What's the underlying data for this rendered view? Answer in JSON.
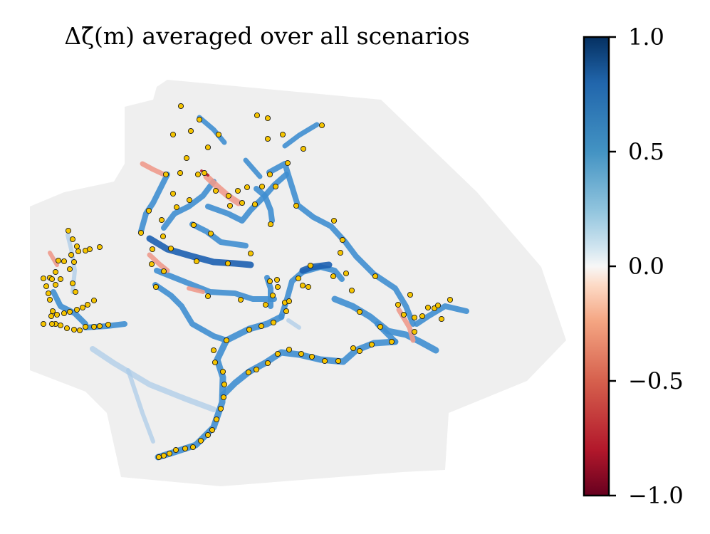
{
  "chart_data": {
    "type": "heatmap",
    "title": "Δζ̄(m) averaged over all scenarios",
    "colorbar": {
      "colormap": "RdBu",
      "vmin": -1.0,
      "vmax": 1.0,
      "ticks": [
        1.0,
        0.5,
        0.0,
        -0.5,
        -1.0
      ],
      "tick_labels": [
        "1.0",
        "0.5",
        "0.0",
        "−0.5",
        "−1.0"
      ]
    },
    "map_background_color": "#efefef",
    "marker_color": "#f5c400",
    "river_colors": {
      "strong_positive": "#1c5fb0",
      "positive": "#3f8ed0",
      "weak_positive": "#a9cbe8",
      "negative": "#ee9a8c",
      "strong_negative": "#b31b2c"
    }
  }
}
